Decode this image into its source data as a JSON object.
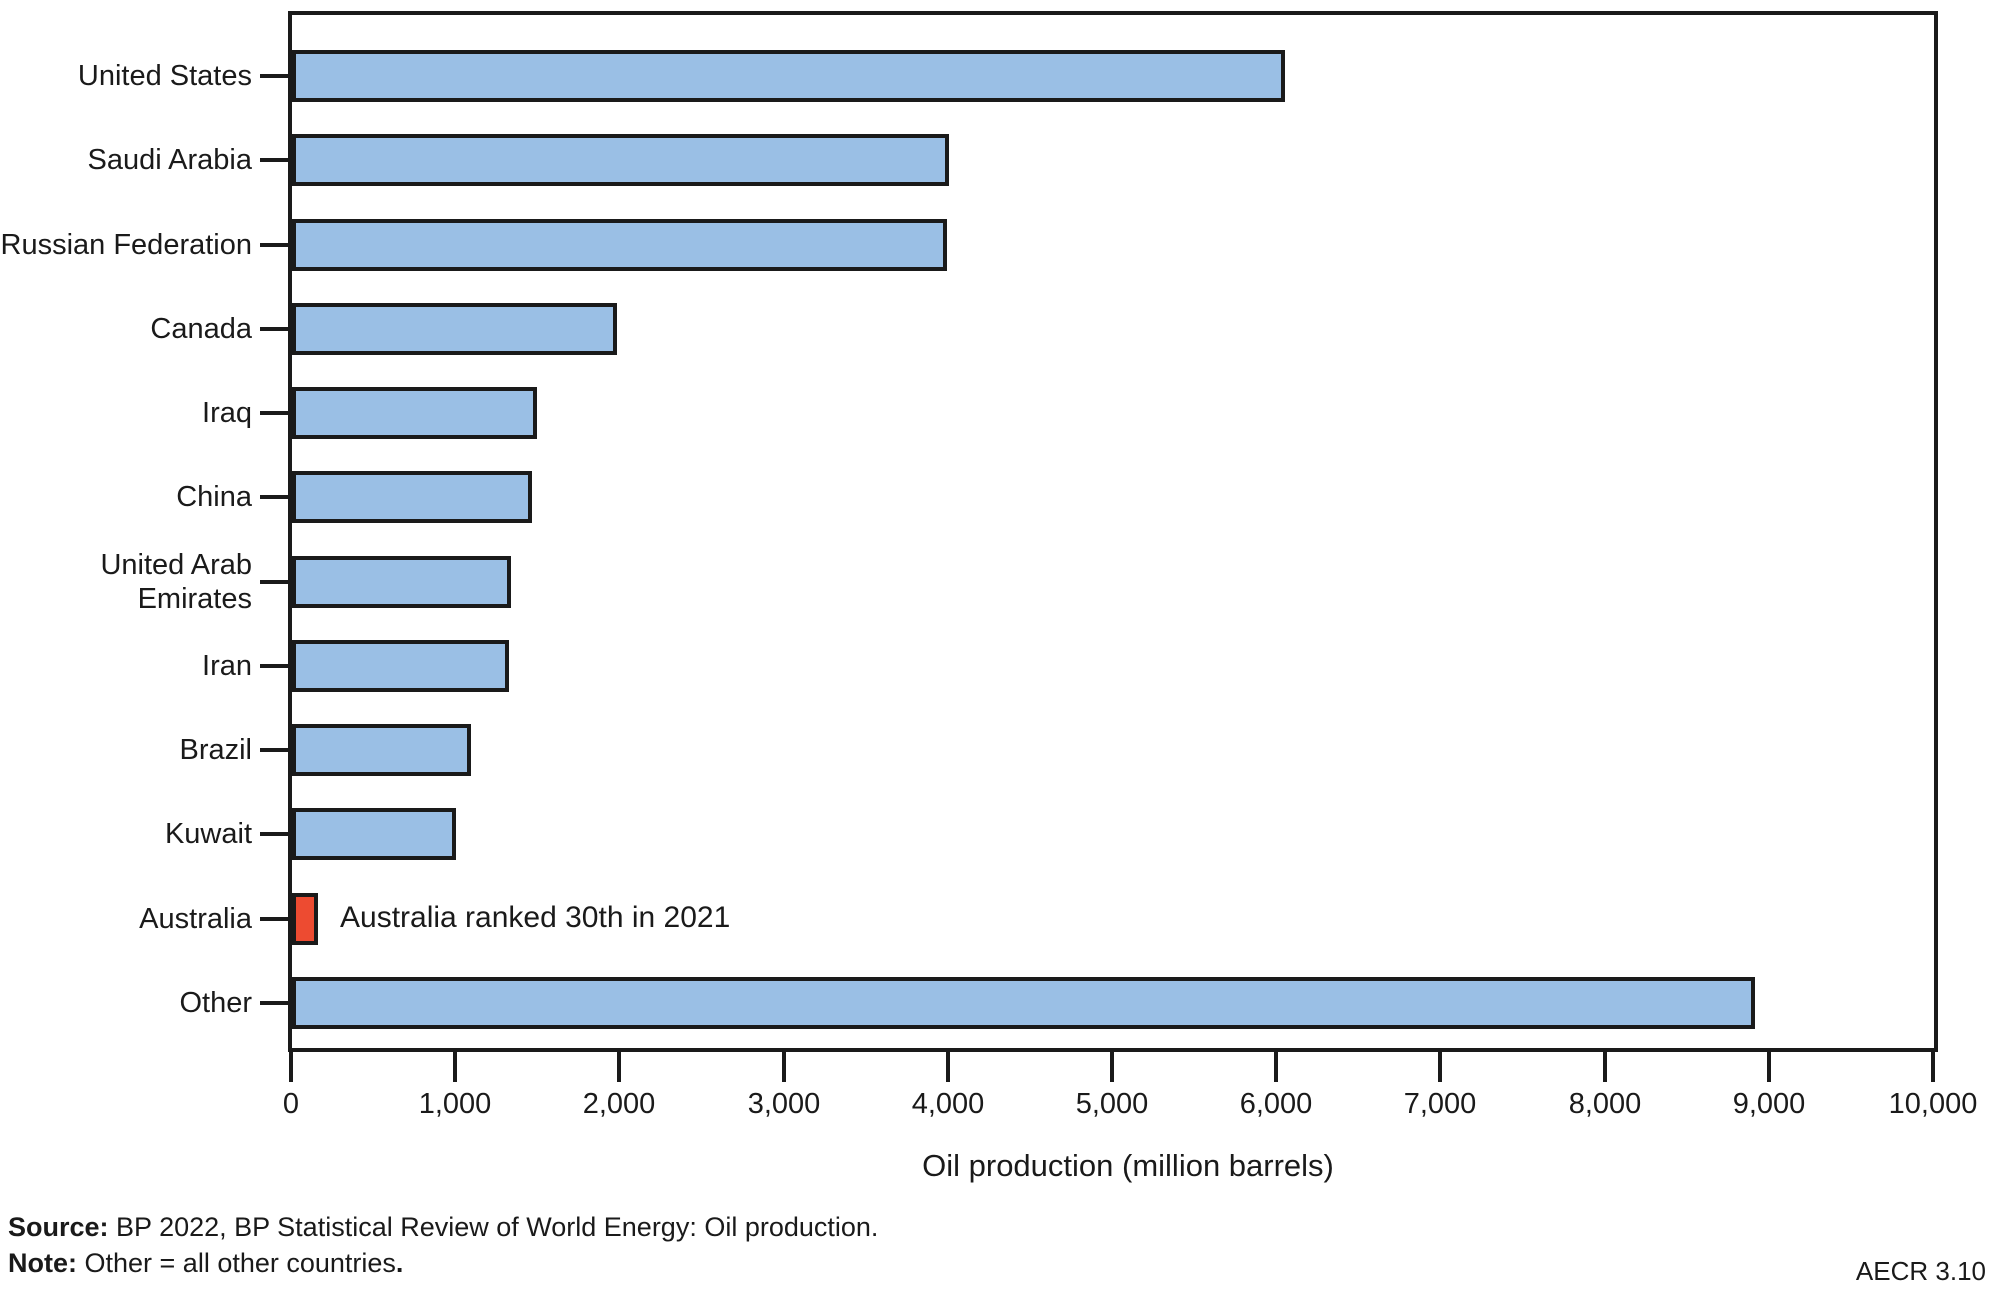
{
  "figure": {
    "footer": {
      "source_label": "Source:",
      "source_text": " BP 2022, BP Statistical Review of World Energy: Oil production.",
      "note_label": "Note:",
      "note_text": " Other = all other countries",
      "note_period": ".",
      "figure_code": "AECR 3.10"
    }
  },
  "chart_data": {
    "type": "bar",
    "orientation": "horizontal",
    "title": "",
    "xlabel": "Oil production (million barrels)",
    "ylabel": "",
    "categories": [
      "United States",
      "Saudi Arabia",
      "Russian Federation",
      "Canada",
      "Iraq",
      "China",
      "United Arab Emirates",
      "Iran",
      "Brazil",
      "Kuwait",
      "Australia",
      "Other"
    ],
    "values": [
      6050,
      4000,
      3990,
      1980,
      1495,
      1460,
      1335,
      1320,
      1090,
      1000,
      160,
      8910
    ],
    "xlim": [
      0,
      10000
    ],
    "xticks": [
      0,
      1000,
      2000,
      3000,
      4000,
      5000,
      6000,
      7000,
      8000,
      9000,
      10000
    ],
    "xtick_labels": [
      "0",
      "1,000",
      "2,000",
      "3,000",
      "4,000",
      "5,000",
      "6,000",
      "7,000",
      "8,000",
      "9,000",
      "10,000"
    ],
    "bar_color": "#9ABFE5",
    "bar_border_color": "#1a1a1a",
    "highlight": {
      "index": 10,
      "category": "Australia",
      "color": "#ED4B31"
    },
    "annotation": {
      "text": "Australia ranked 30th in 2021",
      "attached_to": "Australia"
    },
    "grid": false,
    "legend": null
  }
}
